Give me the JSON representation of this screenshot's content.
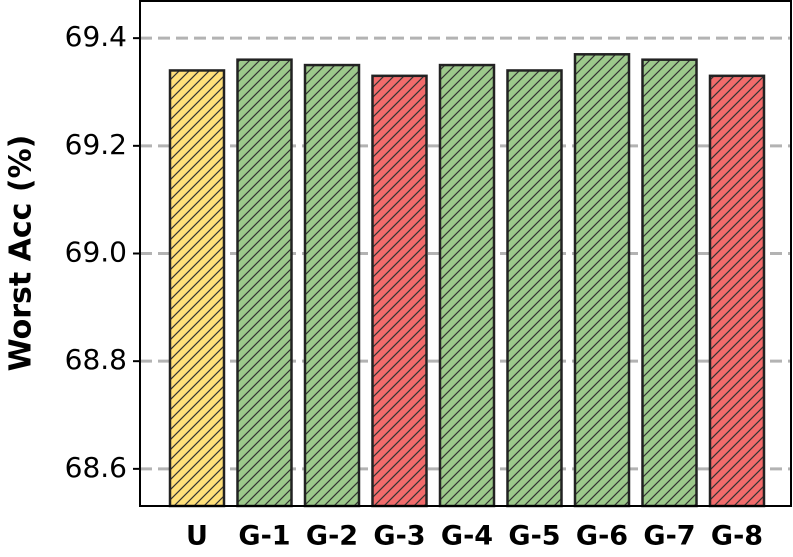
{
  "chart_data": {
    "type": "bar",
    "y_label": "Worst Acc (%)",
    "categories": [
      "U",
      "G-1",
      "G-2",
      "G-3",
      "G-4",
      "G-5",
      "G-6",
      "G-7",
      "G-8"
    ],
    "values": [
      69.34,
      69.36,
      69.35,
      69.33,
      69.35,
      69.34,
      69.37,
      69.36,
      69.33
    ],
    "colors": [
      "#ffe07a",
      "#9dc98b",
      "#9dc98b",
      "#f26b6b",
      "#9dc98b",
      "#9dc98b",
      "#9dc98b",
      "#9dc98b",
      "#f26b6b"
    ],
    "ylim": [
      68.531,
      69.469
    ],
    "yticks": [
      {
        "value": 68.6,
        "label": "68.6"
      },
      {
        "value": 68.8,
        "label": "68.8"
      },
      {
        "value": 69.0,
        "label": "69.0"
      },
      {
        "value": 69.2,
        "label": "69.2"
      },
      {
        "value": 69.4,
        "label": "69.4"
      }
    ],
    "grid": true
  }
}
